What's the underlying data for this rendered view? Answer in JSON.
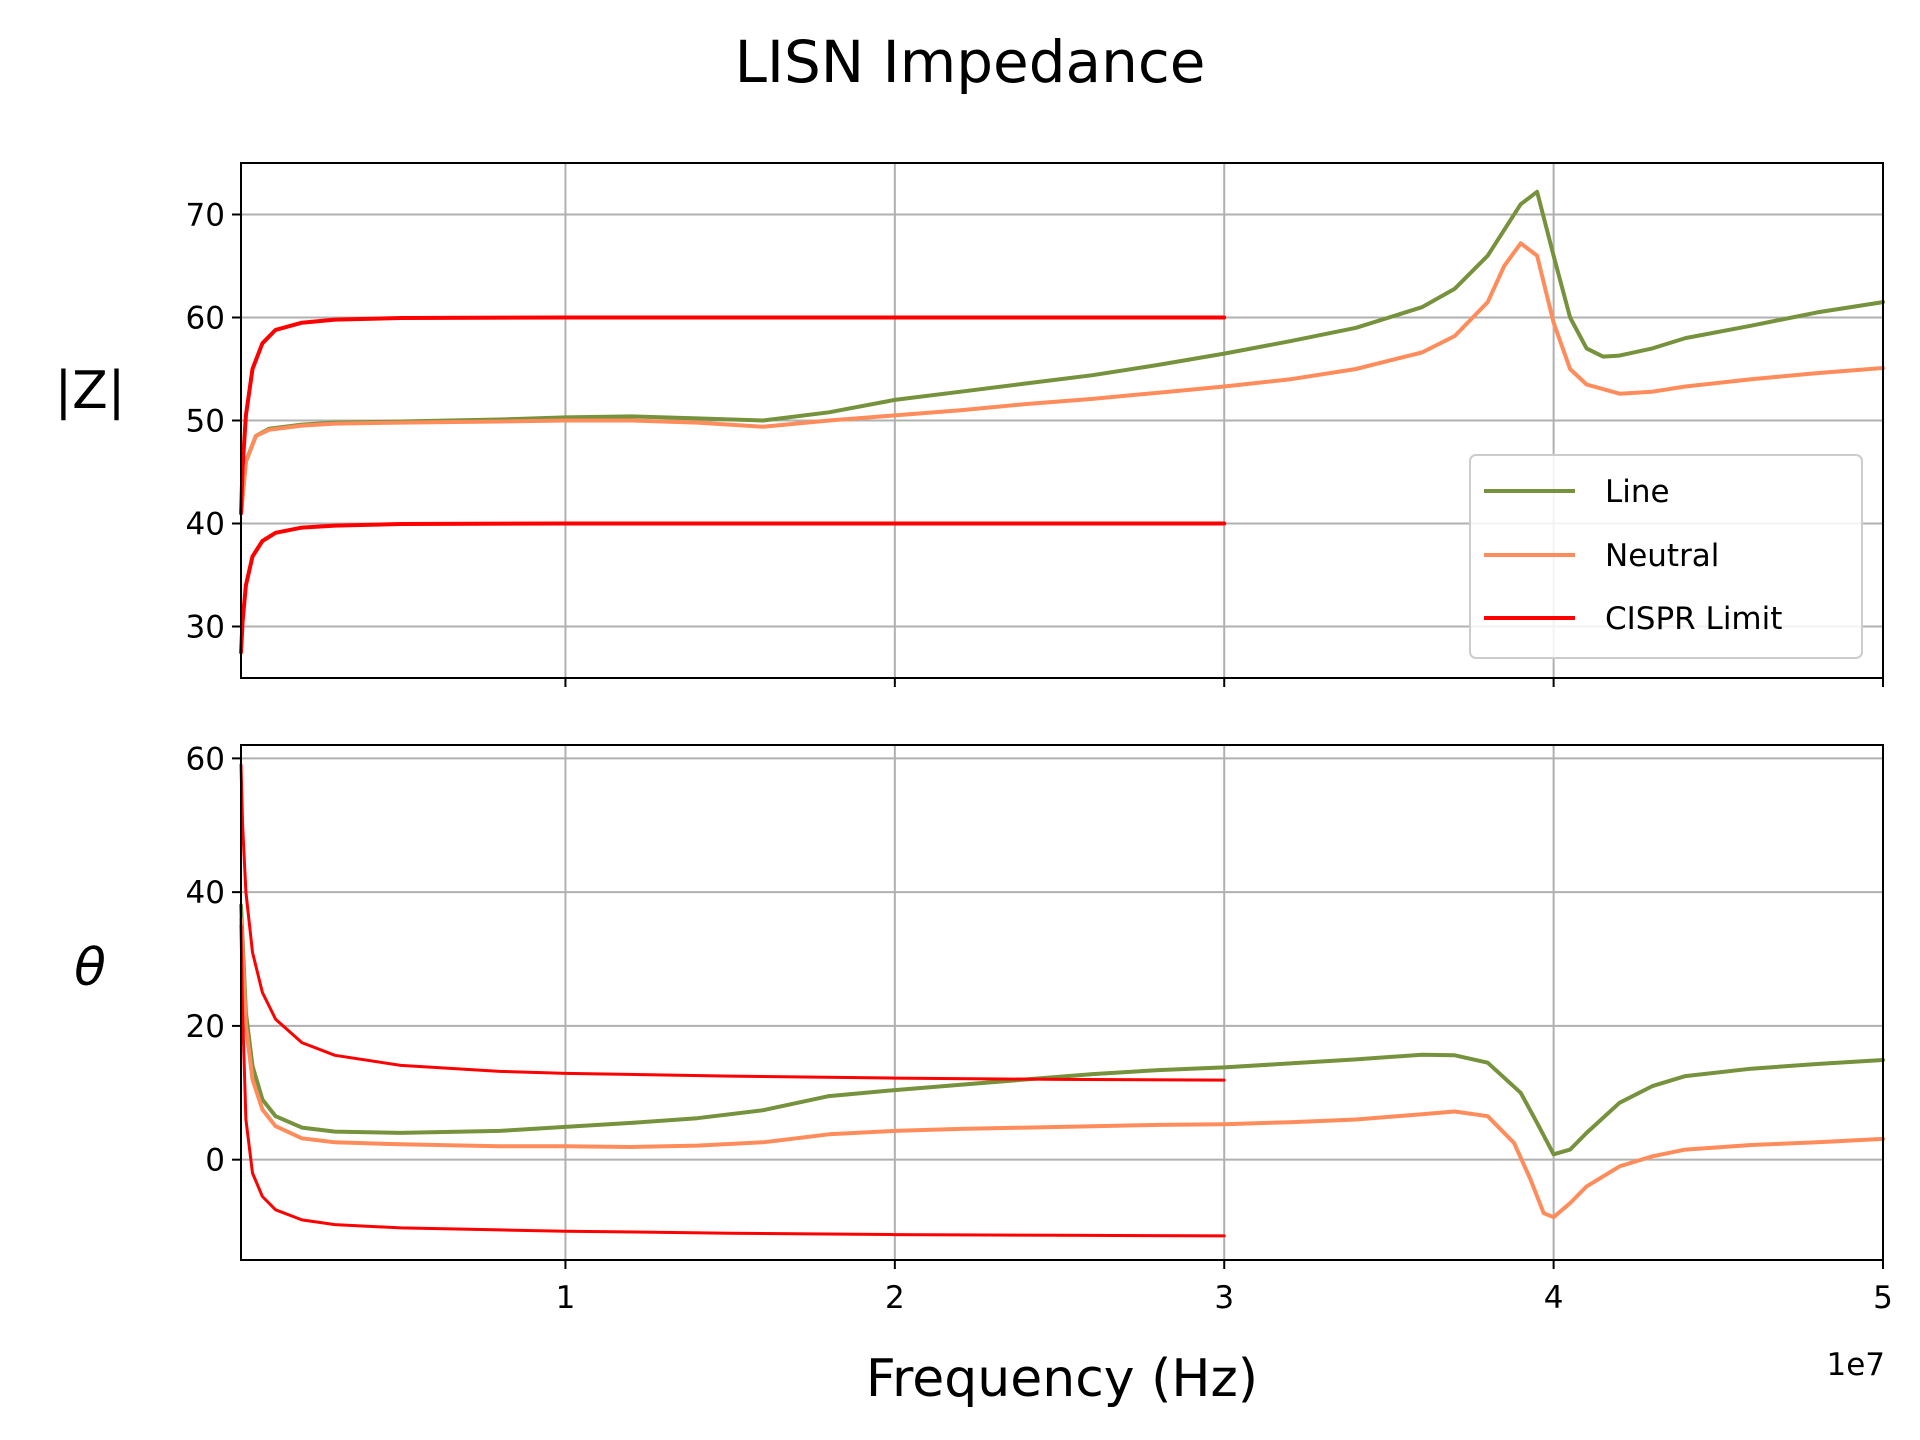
{
  "figure": {
    "title": "LISN Impedance",
    "xlabel": "Frequency (Hz)",
    "x_offset_label": "1e7"
  },
  "chart_data": [
    {
      "type": "line",
      "panel": "top",
      "ylabel": "|Z|",
      "xlim": [
        150000,
        50000000
      ],
      "ylim": [
        25,
        75
      ],
      "x_ticks": [
        10000000,
        20000000,
        30000000,
        40000000,
        50000000
      ],
      "x_tick_labels": [
        "1",
        "2",
        "3",
        "4",
        "5"
      ],
      "x_tick_labels_visible": false,
      "y_ticks": [
        30,
        40,
        50,
        60,
        70
      ],
      "y_tick_labels": [
        "30",
        "40",
        "50",
        "60",
        "70"
      ],
      "grid": true,
      "legend": {
        "position": "lower-right",
        "entries": [
          {
            "label": "Line",
            "color": "#76923c"
          },
          {
            "label": "Neutral",
            "color": "#ff8c5a"
          },
          {
            "label": "CISPR Limit",
            "color": "#ff0000"
          }
        ]
      },
      "series": [
        {
          "name": "Line",
          "color": "#76923c",
          "x": [
            150000,
            300000,
            600000,
            1000000,
            2000000,
            3000000,
            5000000,
            8000000,
            10000000,
            12000000,
            14000000,
            16000000,
            18000000,
            20000000,
            22000000,
            24000000,
            26000000,
            28000000,
            30000000,
            32000000,
            34000000,
            36000000,
            37000000,
            38000000,
            39000000,
            39500000,
            40000000,
            40500000,
            41000000,
            41500000,
            42000000,
            43000000,
            44000000,
            46000000,
            48000000,
            50000000
          ],
          "y": [
            41,
            46,
            48.5,
            49.2,
            49.6,
            49.8,
            49.9,
            50.1,
            50.3,
            50.4,
            50.2,
            50.0,
            50.8,
            52.0,
            52.8,
            53.6,
            54.4,
            55.4,
            56.5,
            57.7,
            59.0,
            61.0,
            62.8,
            66.0,
            71.0,
            72.2,
            66.0,
            60.0,
            57.0,
            56.2,
            56.3,
            57.0,
            58.0,
            59.2,
            60.5,
            61.5
          ]
        },
        {
          "name": "Neutral",
          "color": "#ff8c5a",
          "x": [
            150000,
            300000,
            600000,
            1000000,
            2000000,
            3000000,
            5000000,
            8000000,
            10000000,
            12000000,
            14000000,
            16000000,
            18000000,
            20000000,
            22000000,
            24000000,
            26000000,
            28000000,
            30000000,
            32000000,
            34000000,
            36000000,
            37000000,
            38000000,
            38500000,
            39000000,
            39500000,
            40000000,
            40500000,
            41000000,
            42000000,
            43000000,
            44000000,
            46000000,
            48000000,
            50000000
          ],
          "y": [
            41,
            46,
            48.5,
            49.1,
            49.5,
            49.7,
            49.8,
            49.9,
            50.0,
            50.0,
            49.8,
            49.4,
            50.0,
            50.5,
            51.0,
            51.6,
            52.1,
            52.7,
            53.3,
            54.0,
            55.0,
            56.6,
            58.2,
            61.5,
            65.0,
            67.2,
            66.0,
            59.5,
            55.0,
            53.5,
            52.6,
            52.8,
            53.3,
            54.0,
            54.6,
            55.1
          ]
        },
        {
          "name": "CISPR Limit",
          "color": "#ff0000",
          "x": [
            150000,
            200000,
            300000,
            500000,
            800000,
            1200000,
            2000000,
            3000000,
            5000000,
            10000000,
            20000000,
            30000000
          ],
          "y": [
            41,
            45.5,
            50.5,
            55.0,
            57.5,
            58.8,
            59.5,
            59.8,
            59.95,
            60,
            60,
            60
          ]
        },
        {
          "name": "CISPR Limit (lower)",
          "color": "#ff0000",
          "x": [
            150000,
            200000,
            300000,
            500000,
            800000,
            1200000,
            2000000,
            3000000,
            5000000,
            10000000,
            20000000,
            30000000
          ],
          "y": [
            27.5,
            30.5,
            34.0,
            36.8,
            38.3,
            39.1,
            39.6,
            39.8,
            39.95,
            40,
            40,
            40
          ]
        }
      ]
    },
    {
      "type": "line",
      "panel": "bottom",
      "ylabel": "θ",
      "xlim": [
        150000,
        50000000
      ],
      "ylim": [
        -15,
        62
      ],
      "x_ticks": [
        10000000,
        20000000,
        30000000,
        40000000,
        50000000
      ],
      "x_tick_labels": [
        "1",
        "2",
        "3",
        "4",
        "5"
      ],
      "y_ticks": [
        0,
        20,
        40,
        60
      ],
      "y_tick_labels": [
        "0",
        "20",
        "40",
        "60"
      ],
      "grid": true,
      "series": [
        {
          "name": "Line",
          "color": "#76923c",
          "x": [
            150000,
            300000,
            500000,
            800000,
            1200000,
            2000000,
            3000000,
            5000000,
            8000000,
            10000000,
            12000000,
            14000000,
            16000000,
            18000000,
            20000000,
            22000000,
            24000000,
            26000000,
            28000000,
            30000000,
            32000000,
            34000000,
            36000000,
            37000000,
            38000000,
            39000000,
            39500000,
            40000000,
            40500000,
            41000000,
            42000000,
            43000000,
            44000000,
            46000000,
            48000000,
            50000000
          ],
          "y": [
            38,
            22,
            14,
            9,
            6.5,
            4.8,
            4.2,
            4.0,
            4.3,
            4.9,
            5.5,
            6.2,
            7.4,
            9.5,
            10.4,
            11.2,
            12.0,
            12.8,
            13.4,
            13.8,
            14.4,
            15.0,
            15.7,
            15.6,
            14.5,
            10.0,
            5.5,
            0.8,
            1.5,
            4.0,
            8.5,
            11.0,
            12.5,
            13.6,
            14.3,
            14.9
          ]
        },
        {
          "name": "Neutral",
          "color": "#ff8c5a",
          "x": [
            150000,
            300000,
            500000,
            800000,
            1200000,
            2000000,
            3000000,
            5000000,
            8000000,
            10000000,
            12000000,
            14000000,
            16000000,
            18000000,
            20000000,
            22000000,
            24000000,
            26000000,
            28000000,
            30000000,
            32000000,
            34000000,
            36000000,
            37000000,
            38000000,
            38800000,
            39300000,
            39700000,
            40000000,
            40500000,
            41000000,
            42000000,
            43000000,
            44000000,
            46000000,
            48000000,
            50000000
          ],
          "y": [
            36,
            20,
            12,
            7.5,
            5.0,
            3.2,
            2.6,
            2.3,
            2.0,
            2.0,
            1.9,
            2.1,
            2.6,
            3.8,
            4.3,
            4.6,
            4.8,
            5.0,
            5.2,
            5.3,
            5.6,
            6.0,
            6.8,
            7.2,
            6.5,
            2.5,
            -3.0,
            -8.0,
            -8.6,
            -6.5,
            -4.0,
            -1.0,
            0.5,
            1.5,
            2.2,
            2.6,
            3.1
          ]
        },
        {
          "name": "CISPR Limit",
          "color": "#ff0000",
          "x": [
            150000,
            200000,
            300000,
            500000,
            800000,
            1200000,
            2000000,
            3000000,
            5000000,
            8000000,
            10000000,
            15000000,
            20000000,
            25000000,
            30000000
          ],
          "y": [
            59,
            50,
            40,
            31,
            25,
            21,
            17.5,
            15.6,
            14.1,
            13.2,
            12.9,
            12.5,
            12.2,
            12.0,
            11.9
          ]
        },
        {
          "name": "CISPR Limit (lower)",
          "color": "#ff0000",
          "x": [
            150000,
            200000,
            300000,
            500000,
            800000,
            1200000,
            2000000,
            3000000,
            5000000,
            8000000,
            10000000,
            15000000,
            20000000,
            25000000,
            30000000
          ],
          "y": [
            35,
            22,
            6,
            -2,
            -5.5,
            -7.5,
            -9.0,
            -9.7,
            -10.2,
            -10.5,
            -10.7,
            -11.0,
            -11.2,
            -11.3,
            -11.4
          ]
        }
      ]
    }
  ]
}
